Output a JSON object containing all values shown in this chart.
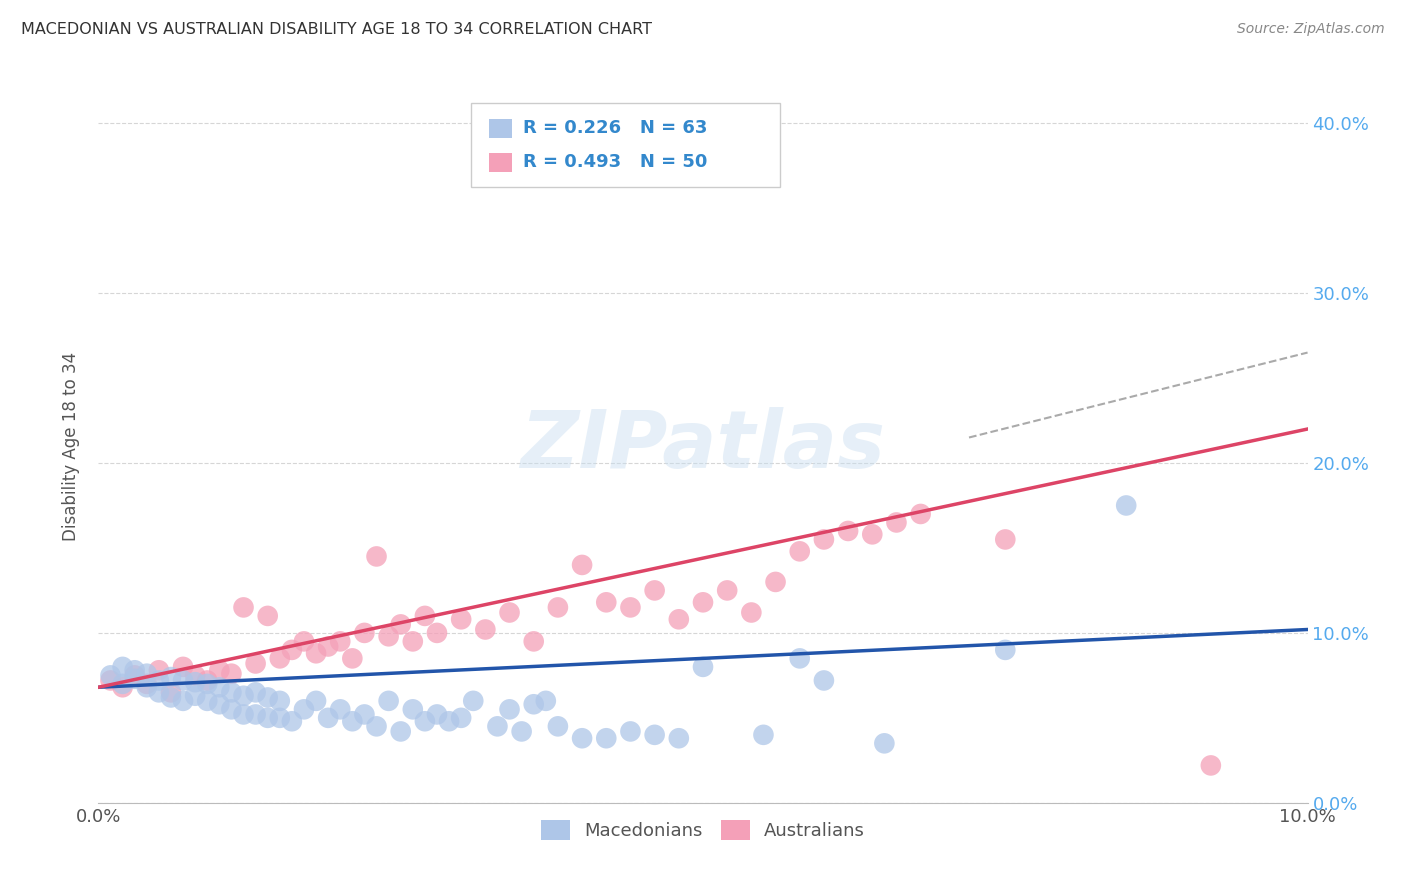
{
  "title": "MACEDONIAN VS AUSTRALIAN DISABILITY AGE 18 TO 34 CORRELATION CHART",
  "source": "Source: ZipAtlas.com",
  "ylabel": "Disability Age 18 to 34",
  "background_color": "#ffffff",
  "plot_bg_color": "#ffffff",
  "grid_color": "#cccccc",
  "macedonian_color": "#aec6e8",
  "macedonian_line_color": "#2255aa",
  "australian_color": "#f4a0b8",
  "australian_line_color": "#dd4466",
  "macedonian_R": 0.226,
  "macedonian_N": 63,
  "australian_R": 0.493,
  "australian_N": 50,
  "watermark": "ZIPatlas",
  "legend_R_color": "#3388cc",
  "macedonian_scatter_x": [
    0.001,
    0.002,
    0.002,
    0.003,
    0.003,
    0.004,
    0.004,
    0.005,
    0.005,
    0.006,
    0.006,
    0.007,
    0.007,
    0.008,
    0.008,
    0.009,
    0.009,
    0.01,
    0.01,
    0.011,
    0.011,
    0.012,
    0.012,
    0.013,
    0.013,
    0.014,
    0.014,
    0.015,
    0.015,
    0.016,
    0.017,
    0.018,
    0.019,
    0.02,
    0.021,
    0.022,
    0.023,
    0.024,
    0.025,
    0.026,
    0.027,
    0.028,
    0.029,
    0.03,
    0.031,
    0.033,
    0.034,
    0.035,
    0.036,
    0.037,
    0.038,
    0.04,
    0.042,
    0.044,
    0.046,
    0.048,
    0.05,
    0.055,
    0.058,
    0.06,
    0.065,
    0.075,
    0.085
  ],
  "macedonian_scatter_y": [
    0.075,
    0.07,
    0.08,
    0.073,
    0.078,
    0.068,
    0.076,
    0.065,
    0.072,
    0.062,
    0.074,
    0.06,
    0.072,
    0.063,
    0.071,
    0.06,
    0.07,
    0.058,
    0.068,
    0.055,
    0.065,
    0.052,
    0.063,
    0.052,
    0.065,
    0.05,
    0.062,
    0.05,
    0.06,
    0.048,
    0.055,
    0.06,
    0.05,
    0.055,
    0.048,
    0.052,
    0.045,
    0.06,
    0.042,
    0.055,
    0.048,
    0.052,
    0.048,
    0.05,
    0.06,
    0.045,
    0.055,
    0.042,
    0.058,
    0.06,
    0.045,
    0.038,
    0.038,
    0.042,
    0.04,
    0.038,
    0.08,
    0.04,
    0.085,
    0.072,
    0.035,
    0.09,
    0.175
  ],
  "australian_scatter_x": [
    0.001,
    0.002,
    0.003,
    0.004,
    0.005,
    0.006,
    0.007,
    0.008,
    0.009,
    0.01,
    0.011,
    0.012,
    0.013,
    0.014,
    0.015,
    0.016,
    0.017,
    0.018,
    0.019,
    0.02,
    0.021,
    0.022,
    0.023,
    0.024,
    0.025,
    0.026,
    0.027,
    0.028,
    0.03,
    0.032,
    0.034,
    0.036,
    0.038,
    0.04,
    0.042,
    0.044,
    0.046,
    0.048,
    0.05,
    0.052,
    0.054,
    0.056,
    0.058,
    0.06,
    0.062,
    0.064,
    0.066,
    0.068,
    0.075,
    0.092
  ],
  "australian_scatter_y": [
    0.072,
    0.068,
    0.075,
    0.07,
    0.078,
    0.065,
    0.08,
    0.075,
    0.072,
    0.078,
    0.076,
    0.115,
    0.082,
    0.11,
    0.085,
    0.09,
    0.095,
    0.088,
    0.092,
    0.095,
    0.085,
    0.1,
    0.145,
    0.098,
    0.105,
    0.095,
    0.11,
    0.1,
    0.108,
    0.102,
    0.112,
    0.095,
    0.115,
    0.14,
    0.118,
    0.115,
    0.125,
    0.108,
    0.118,
    0.125,
    0.112,
    0.13,
    0.148,
    0.155,
    0.16,
    0.158,
    0.165,
    0.17,
    0.155,
    0.022
  ],
  "xlim": [
    0.0,
    0.1
  ],
  "ylim": [
    0.0,
    0.42
  ],
  "yticks": [
    0.0,
    0.1,
    0.2,
    0.3,
    0.4
  ],
  "ytick_labels_right": [
    "0.0%",
    "10.0%",
    "20.0%",
    "30.0%",
    "40.0%"
  ],
  "xticks": [
    0.0,
    0.025,
    0.05,
    0.075,
    0.1
  ],
  "xtick_labels": [
    "0.0%",
    "",
    "",
    "",
    "10.0%"
  ],
  "mac_line_x": [
    0.0,
    0.1
  ],
  "mac_line_y": [
    0.068,
    0.102
  ],
  "aus_line_x": [
    0.0,
    0.1
  ],
  "aus_line_y": [
    0.068,
    0.22
  ],
  "dash_line_x": [
    0.072,
    0.1
  ],
  "dash_line_y": [
    0.215,
    0.265
  ]
}
